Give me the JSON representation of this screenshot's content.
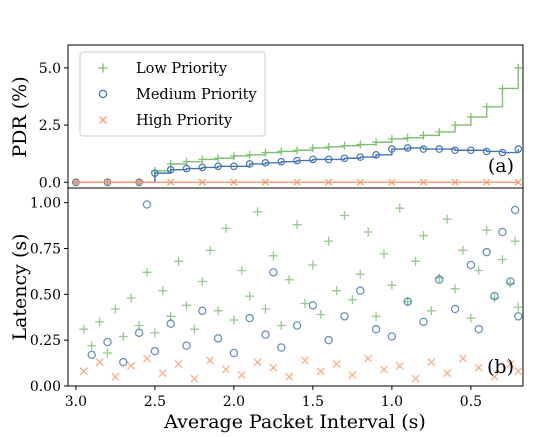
{
  "chart_data": [
    {
      "type": "line",
      "panel_tag": "(a)",
      "ylabel": "PDR (%)",
      "xlim": [
        3.05,
        0.17
      ],
      "ylim": [
        -0.25,
        6.0
      ],
      "yticks": [
        0.0,
        2.5,
        5.0
      ],
      "ytick_labels": [
        "0.0",
        "2.5",
        "5.0"
      ],
      "legend": {
        "placement": "top-left"
      },
      "series": [
        {
          "name": "Low Priority",
          "color": "#7cbf6e",
          "marker": "plus",
          "x": [
            3.0,
            2.8,
            2.6,
            2.5,
            2.4,
            2.3,
            2.2,
            2.1,
            2.0,
            1.9,
            1.8,
            1.7,
            1.6,
            1.5,
            1.4,
            1.3,
            1.2,
            1.1,
            1.0,
            0.9,
            0.8,
            0.7,
            0.6,
            0.5,
            0.4,
            0.3,
            0.2
          ],
          "values": [
            0.0,
            0.0,
            0.0,
            0.5,
            0.8,
            0.9,
            1.0,
            1.05,
            1.15,
            1.2,
            1.3,
            1.35,
            1.4,
            1.5,
            1.55,
            1.6,
            1.65,
            1.75,
            1.9,
            1.95,
            2.05,
            2.2,
            2.5,
            2.85,
            3.3,
            4.1,
            5.0
          ]
        },
        {
          "name": "Medium Priority",
          "color": "#4575b4",
          "marker": "circle",
          "x": [
            3.0,
            2.8,
            2.6,
            2.5,
            2.4,
            2.3,
            2.2,
            2.1,
            2.0,
            1.9,
            1.8,
            1.7,
            1.6,
            1.5,
            1.4,
            1.3,
            1.2,
            1.1,
            1.0,
            0.9,
            0.8,
            0.7,
            0.6,
            0.5,
            0.4,
            0.3,
            0.2
          ],
          "values": [
            0.0,
            0.0,
            0.0,
            0.4,
            0.55,
            0.6,
            0.65,
            0.7,
            0.7,
            0.8,
            0.85,
            0.9,
            0.95,
            1.0,
            1.0,
            1.05,
            1.1,
            1.2,
            1.45,
            1.5,
            1.45,
            1.45,
            1.4,
            1.4,
            1.35,
            1.3,
            1.45
          ]
        },
        {
          "name": "High Priority",
          "color": "#f59b6c",
          "marker": "x",
          "x": [
            3.0,
            2.8,
            2.6,
            2.4,
            2.2,
            2.0,
            1.8,
            1.6,
            1.4,
            1.2,
            1.0,
            0.8,
            0.6,
            0.4,
            0.2
          ],
          "values": [
            0,
            0,
            0,
            0,
            0,
            0,
            0,
            0,
            0,
            0,
            0,
            0,
            0,
            0,
            0
          ]
        }
      ]
    },
    {
      "type": "scatter",
      "panel_tag": "(b)",
      "ylabel": "Latency (s)",
      "xlabel": "Average Packet Interval (s)",
      "xlim": [
        3.05,
        0.17
      ],
      "ylim": [
        0.0,
        1.08
      ],
      "xticks": [
        3.0,
        2.5,
        2.0,
        1.5,
        1.0,
        0.5
      ],
      "xtick_labels": [
        "3.0",
        "2.5",
        "2.0",
        "1.5",
        "1.0",
        "0.5"
      ],
      "yticks": [
        0.0,
        0.25,
        0.5,
        0.75,
        1.0
      ],
      "ytick_labels": [
        "0.00",
        "0.25",
        "0.50",
        "0.75",
        "1.00"
      ],
      "series": [
        {
          "name": "Low Priority",
          "color": "#7cbf6e",
          "marker": "plus",
          "points": [
            [
              2.95,
              0.31
            ],
            [
              2.9,
              0.22
            ],
            [
              2.85,
              0.35
            ],
            [
              2.8,
              0.18
            ],
            [
              2.75,
              0.42
            ],
            [
              2.7,
              0.27
            ],
            [
              2.65,
              0.48
            ],
            [
              2.6,
              0.33
            ],
            [
              2.55,
              0.62
            ],
            [
              2.5,
              0.29
            ],
            [
              2.45,
              0.52
            ],
            [
              2.4,
              0.38
            ],
            [
              2.35,
              0.68
            ],
            [
              2.3,
              0.44
            ],
            [
              2.25,
              0.31
            ],
            [
              2.2,
              0.57
            ],
            [
              2.15,
              0.74
            ],
            [
              2.1,
              0.41
            ],
            [
              2.05,
              0.86
            ],
            [
              2.0,
              0.36
            ],
            [
              1.95,
              0.63
            ],
            [
              1.9,
              0.49
            ],
            [
              1.85,
              0.95
            ],
            [
              1.8,
              0.42
            ],
            [
              1.75,
              0.71
            ],
            [
              1.7,
              0.33
            ],
            [
              1.65,
              0.58
            ],
            [
              1.6,
              0.88
            ],
            [
              1.55,
              0.45
            ],
            [
              1.5,
              0.66
            ],
            [
              1.45,
              0.39
            ],
            [
              1.4,
              0.79
            ],
            [
              1.35,
              0.52
            ],
            [
              1.3,
              0.93
            ],
            [
              1.25,
              0.47
            ],
            [
              1.2,
              0.61
            ],
            [
              1.15,
              0.84
            ],
            [
              1.1,
              0.38
            ],
            [
              1.05,
              0.72
            ],
            [
              1.0,
              0.55
            ],
            [
              0.95,
              0.97
            ],
            [
              0.9,
              0.46
            ],
            [
              0.85,
              0.68
            ],
            [
              0.8,
              0.82
            ],
            [
              0.75,
              0.41
            ],
            [
              0.7,
              0.59
            ],
            [
              0.65,
              0.91
            ],
            [
              0.6,
              0.53
            ],
            [
              0.55,
              0.74
            ],
            [
              0.5,
              0.37
            ],
            [
              0.45,
              0.63
            ],
            [
              0.4,
              0.85
            ],
            [
              0.35,
              0.48
            ],
            [
              0.3,
              0.69
            ],
            [
              0.25,
              0.56
            ],
            [
              0.22,
              0.79
            ],
            [
              0.2,
              0.43
            ]
          ]
        },
        {
          "name": "Medium Priority",
          "color": "#4575b4",
          "marker": "circle",
          "points": [
            [
              2.9,
              0.17
            ],
            [
              2.8,
              0.24
            ],
            [
              2.7,
              0.13
            ],
            [
              2.6,
              0.29
            ],
            [
              2.55,
              0.99
            ],
            [
              2.5,
              0.19
            ],
            [
              2.4,
              0.34
            ],
            [
              2.3,
              0.22
            ],
            [
              2.2,
              0.41
            ],
            [
              2.1,
              0.26
            ],
            [
              2.0,
              0.18
            ],
            [
              1.9,
              0.37
            ],
            [
              1.8,
              0.28
            ],
            [
              1.75,
              0.62
            ],
            [
              1.7,
              0.21
            ],
            [
              1.6,
              0.33
            ],
            [
              1.5,
              0.44
            ],
            [
              1.4,
              0.25
            ],
            [
              1.3,
              0.38
            ],
            [
              1.2,
              0.52
            ],
            [
              1.1,
              0.31
            ],
            [
              1.0,
              0.27
            ],
            [
              0.9,
              0.46
            ],
            [
              0.8,
              0.35
            ],
            [
              0.7,
              0.58
            ],
            [
              0.6,
              0.42
            ],
            [
              0.5,
              0.66
            ],
            [
              0.45,
              0.31
            ],
            [
              0.4,
              0.73
            ],
            [
              0.35,
              0.49
            ],
            [
              0.3,
              0.84
            ],
            [
              0.25,
              0.57
            ],
            [
              0.22,
              0.96
            ],
            [
              0.2,
              0.38
            ]
          ]
        },
        {
          "name": "High Priority",
          "color": "#f59b6c",
          "marker": "x",
          "points": [
            [
              2.95,
              0.08
            ],
            [
              2.85,
              0.13
            ],
            [
              2.75,
              0.05
            ],
            [
              2.65,
              0.11
            ],
            [
              2.55,
              0.15
            ],
            [
              2.45,
              0.07
            ],
            [
              2.35,
              0.12
            ],
            [
              2.25,
              0.04
            ],
            [
              2.15,
              0.14
            ],
            [
              2.05,
              0.09
            ],
            [
              1.95,
              0.06
            ],
            [
              1.85,
              0.13
            ],
            [
              1.75,
              0.1
            ],
            [
              1.65,
              0.05
            ],
            [
              1.55,
              0.14
            ],
            [
              1.45,
              0.08
            ],
            [
              1.35,
              0.12
            ],
            [
              1.25,
              0.06
            ],
            [
              1.15,
              0.15
            ],
            [
              1.05,
              0.09
            ],
            [
              0.95,
              0.11
            ],
            [
              0.85,
              0.04
            ],
            [
              0.75,
              0.13
            ],
            [
              0.65,
              0.07
            ],
            [
              0.55,
              0.15
            ],
            [
              0.45,
              0.1
            ],
            [
              0.35,
              0.05
            ],
            [
              0.25,
              0.12
            ],
            [
              0.2,
              0.08
            ]
          ]
        }
      ]
    }
  ]
}
